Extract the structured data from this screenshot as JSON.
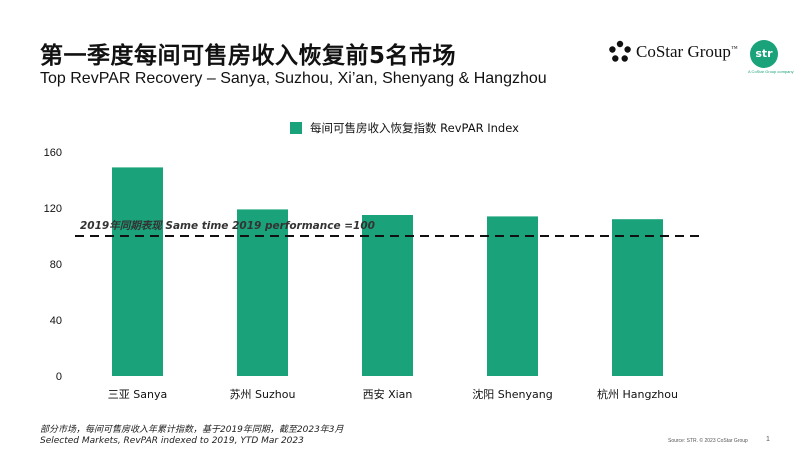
{
  "header": {
    "title_cn": "第一季度每间可售房收入恢复前5名市场",
    "title_en": "Top RevPAR Recovery – Sanya, Suzhou, Xi’an, Shenyang & Hangzhou"
  },
  "logos": {
    "costar": "CoStar Group",
    "costar_tm": "™",
    "str": "str",
    "str_sub": "A CoStar Group company"
  },
  "chart_data": {
    "type": "bar",
    "categories": [
      "三亚 Sanya",
      "苏州 Suzhou",
      "西安 Xian",
      "沈阳 Shenyang",
      "杭州 Hangzhou"
    ],
    "series": [
      {
        "name": "每间可售房收入恢复指数 RevPAR Index",
        "values": [
          149,
          119,
          115,
          114,
          112
        ]
      }
    ],
    "yticks": [
      0,
      40,
      80,
      120,
      160
    ],
    "ylim": [
      0,
      160
    ],
    "reference_line": {
      "value": 100,
      "label": "2019年同期表现 Same time 2019 performance =100"
    },
    "legend_position": "top",
    "grid": false,
    "colors": {
      "bar": "#1aa37a",
      "reference_line": "#111111"
    }
  },
  "footer": {
    "note_cn": "部分市场，每间可售房收入年累计指数，基于2019年同期，截至2023年3月",
    "note_en": "Selected Markets, RevPAR indexed to 2019,  YTD Mar 2023",
    "source": "Source: STR. © 2023 CoStar Group",
    "page_number": "1"
  }
}
